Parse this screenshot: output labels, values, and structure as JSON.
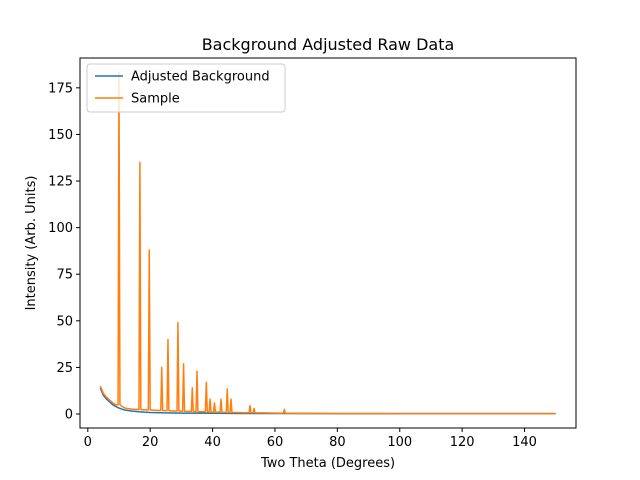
{
  "chart_data": {
    "type": "line",
    "title": "Background Adjusted Raw Data",
    "xlabel": "Two Theta (Degrees)",
    "ylabel": "Intensity (Arb. Units)",
    "xlim": [
      -2.5,
      156.5
    ],
    "ylim": [
      -7.5,
      191
    ],
    "xticks": [
      0,
      20,
      40,
      60,
      80,
      100,
      120,
      140
    ],
    "yticks": [
      0,
      25,
      50,
      75,
      100,
      125,
      150,
      175
    ],
    "grid": false,
    "legend_position": "top-left",
    "series": [
      {
        "name": "Adjusted Background",
        "color": "#1f77b4",
        "x": [
          4,
          5,
          6,
          7,
          8,
          9,
          10,
          11,
          12,
          14,
          16,
          18,
          20,
          25,
          30,
          40,
          50,
          60,
          80,
          100,
          120,
          150
        ],
        "y": [
          14,
          10,
          8,
          6.5,
          5,
          4,
          3.2,
          2.6,
          2.1,
          1.6,
          1.3,
          1.0,
          0.8,
          0.6,
          0.5,
          0.4,
          0.3,
          0.3,
          0.2,
          0.2,
          0.2,
          0.2
        ]
      },
      {
        "name": "Sample",
        "color": "#ff7f0e",
        "x": [
          4,
          5,
          6,
          7,
          8,
          9,
          9.7,
          10.0,
          10.3,
          11,
          12,
          14,
          16.4,
          16.7,
          17.0,
          18,
          19.4,
          19.7,
          20.0,
          21,
          22,
          23.4,
          23.7,
          24.0,
          25.4,
          25.7,
          26.0,
          27,
          28.6,
          28.9,
          29.2,
          30.4,
          30.7,
          31.0,
          32,
          33.2,
          33.5,
          33.8,
          34.7,
          35.0,
          35.3,
          36,
          37.7,
          38.0,
          38.3,
          38.9,
          39.2,
          39.5,
          40.3,
          40.6,
          40.9,
          42.4,
          42.7,
          43.0,
          44.4,
          44.7,
          45.0,
          45.6,
          45.9,
          46.2,
          48,
          50,
          51.7,
          52.0,
          52.3,
          53.0,
          53.3,
          53.6,
          55,
          57,
          60,
          62.7,
          63.0,
          63.3,
          65,
          70,
          80,
          90,
          100,
          120,
          150
        ],
        "y": [
          15,
          11,
          9,
          7.5,
          6,
          5,
          5,
          183,
          5,
          4,
          3.2,
          2.6,
          2.4,
          135,
          2.4,
          2.2,
          2.2,
          88,
          2.2,
          2.0,
          2.0,
          1.9,
          25,
          1.9,
          1.8,
          40,
          1.8,
          1.6,
          1.6,
          49,
          1.6,
          1.5,
          27,
          1.5,
          1.4,
          1.4,
          14,
          1.4,
          1.3,
          23,
          1.3,
          1.2,
          1.2,
          17,
          1.2,
          1.1,
          8,
          1.1,
          1.0,
          6,
          1.0,
          1.0,
          8,
          1.0,
          0.9,
          13.5,
          0.9,
          0.9,
          8,
          0.9,
          0.8,
          0.7,
          0.7,
          4.5,
          0.7,
          0.7,
          3,
          0.7,
          0.6,
          0.6,
          0.5,
          0.5,
          2.5,
          0.5,
          0.4,
          0.4,
          0.3,
          0.3,
          0.2,
          0.2,
          0.2
        ]
      }
    ]
  }
}
